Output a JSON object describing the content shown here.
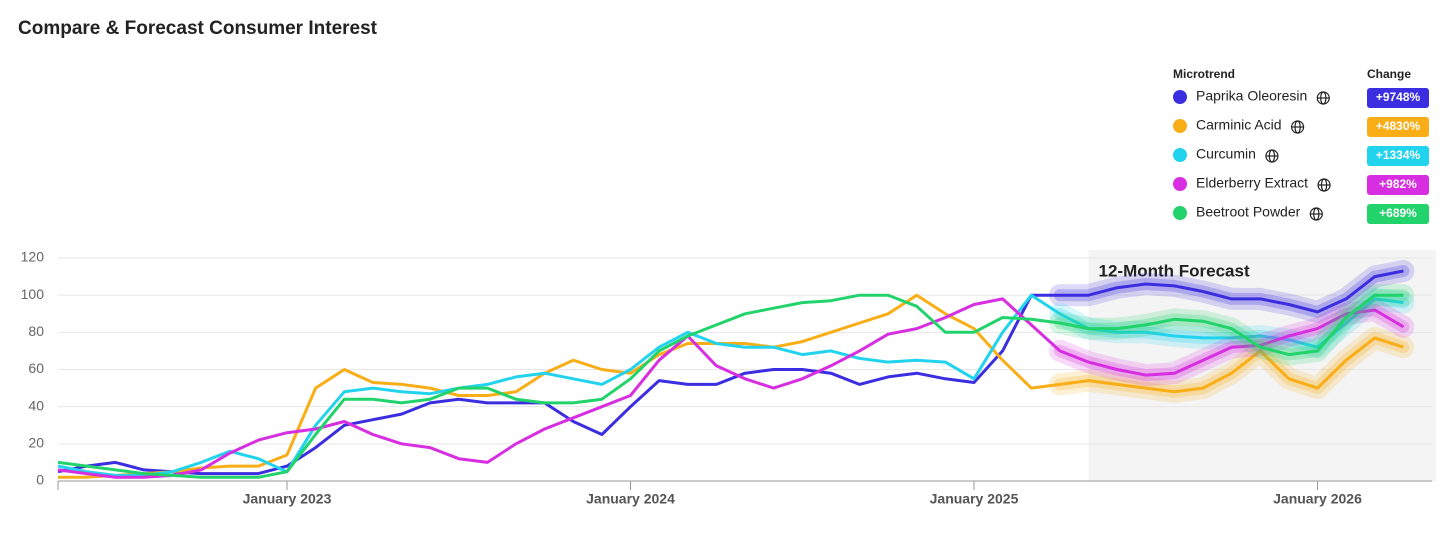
{
  "chart_data": {
    "type": "line",
    "title": "Compare & Forecast Consumer Interest",
    "legend_header": "Microtrend",
    "change_header": "Change",
    "forecast": {
      "label": "12-Month Forecast",
      "start": "2025-05"
    },
    "x": [
      "2022-05",
      "2022-06",
      "2022-07",
      "2022-08",
      "2022-09",
      "2022-10",
      "2022-11",
      "2022-12",
      "2023-01",
      "2023-02",
      "2023-03",
      "2023-04",
      "2023-05",
      "2023-06",
      "2023-07",
      "2023-08",
      "2023-09",
      "2023-10",
      "2023-11",
      "2023-12",
      "2024-01",
      "2024-02",
      "2024-03",
      "2024-04",
      "2024-05",
      "2024-06",
      "2024-07",
      "2024-08",
      "2024-09",
      "2024-10",
      "2024-11",
      "2024-12",
      "2025-01",
      "2025-02",
      "2025-03",
      "2025-04",
      "2025-05",
      "2025-06",
      "2025-07",
      "2025-08",
      "2025-09",
      "2025-10",
      "2025-11",
      "2025-12",
      "2026-01",
      "2026-02",
      "2026-03",
      "2026-04"
    ],
    "xlim": [
      "2022-05",
      "2026-05"
    ],
    "xticks": [
      {
        "value": "2023-01",
        "label": "January 2023"
      },
      {
        "value": "2024-01",
        "label": "January 2024"
      },
      {
        "value": "2025-01",
        "label": "January 2025"
      },
      {
        "value": "2026-01",
        "label": "January 2026"
      }
    ],
    "ylim": [
      0,
      120
    ],
    "yticks": [
      0,
      20,
      40,
      60,
      80,
      100,
      120
    ],
    "grid": true,
    "series": [
      {
        "name": "Paprika Oleoresin",
        "change": "+9748%",
        "color": "#3b2ee0",
        "values": [
          5,
          8,
          10,
          6,
          5,
          4,
          4,
          4,
          8,
          18,
          30,
          33,
          36,
          42,
          44,
          42,
          42,
          42,
          32,
          25,
          40,
          54,
          52,
          52,
          58,
          60,
          60,
          58,
          52,
          56,
          58,
          55,
          53,
          70,
          100,
          100,
          100,
          104,
          106,
          105,
          102,
          98,
          98,
          95,
          91,
          98,
          110,
          113
        ]
      },
      {
        "name": "Carminic Acid",
        "change": "+4830%",
        "color": "#f9ae17",
        "values": [
          2,
          2,
          3,
          4,
          5,
          7,
          8,
          8,
          14,
          50,
          60,
          53,
          52,
          50,
          46,
          46,
          48,
          58,
          65,
          60,
          58,
          68,
          74,
          74,
          74,
          72,
          75,
          80,
          85,
          90,
          100,
          90,
          82,
          65,
          50,
          52,
          54,
          52,
          50,
          48,
          50,
          58,
          70,
          55,
          50,
          65,
          77,
          72
        ]
      },
      {
        "name": "Curcumin",
        "change": "+1334%",
        "color": "#22d3ee",
        "values": [
          8,
          5,
          3,
          3,
          5,
          10,
          16,
          12,
          5,
          30,
          48,
          50,
          48,
          47,
          50,
          52,
          56,
          58,
          55,
          52,
          60,
          72,
          80,
          74,
          72,
          72,
          68,
          70,
          66,
          64,
          65,
          64,
          55,
          80,
          100,
          90,
          82,
          80,
          80,
          78,
          77,
          77,
          78,
          76,
          72,
          85,
          98,
          96
        ]
      },
      {
        "name": "Elderberry Extract",
        "change": "+982%",
        "color": "#d62ee0",
        "values": [
          6,
          4,
          2,
          2,
          3,
          6,
          15,
          22,
          26,
          28,
          32,
          25,
          20,
          18,
          12,
          10,
          20,
          28,
          34,
          40,
          46,
          65,
          78,
          62,
          55,
          50,
          55,
          62,
          70,
          79,
          82,
          88,
          95,
          98,
          84,
          70,
          64,
          60,
          57,
          58,
          65,
          72,
          73,
          78,
          82,
          90,
          92,
          83
        ]
      },
      {
        "name": "Beetroot Powder",
        "change": "+689%",
        "color": "#22d36b",
        "values": [
          10,
          8,
          6,
          4,
          3,
          2,
          2,
          2,
          5,
          25,
          44,
          44,
          42,
          44,
          50,
          50,
          44,
          42,
          42,
          44,
          55,
          70,
          78,
          84,
          90,
          93,
          96,
          97,
          100,
          100,
          94,
          80,
          80,
          88,
          87,
          85,
          82,
          82,
          84,
          87,
          86,
          82,
          72,
          68,
          70,
          88,
          100,
          100
        ]
      }
    ]
  }
}
